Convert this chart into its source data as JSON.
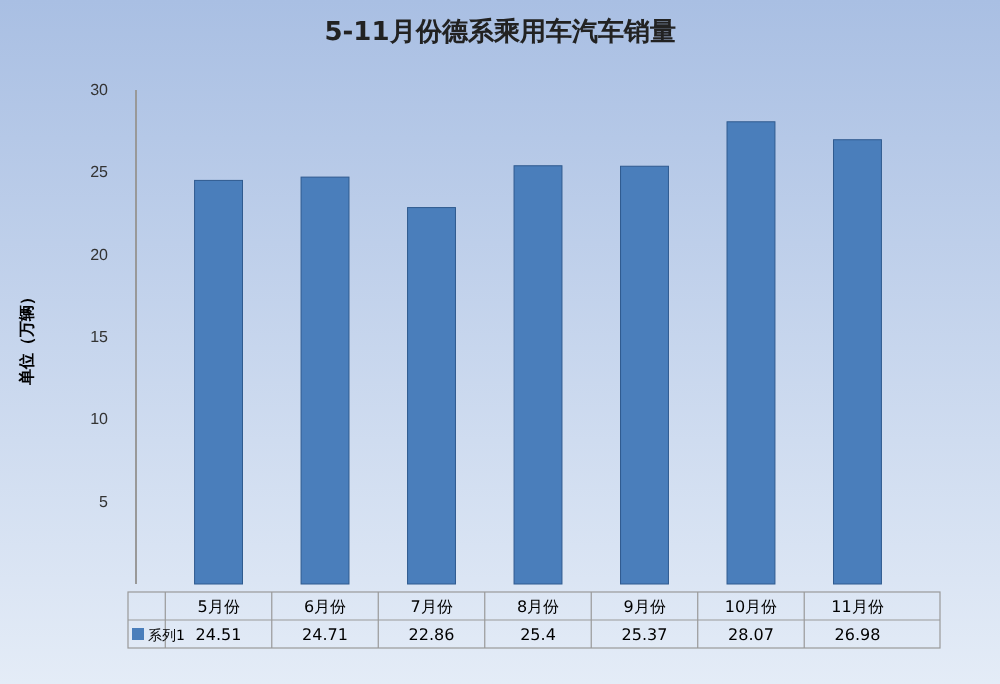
{
  "chart_data": {
    "type": "bar",
    "title": "5-11月份德系乘用车汽车销量",
    "ylabel": "单位（万辆）",
    "categories": [
      "5月份",
      "6月份",
      "7月份",
      "8月份",
      "9月份",
      "10月份",
      "11月份"
    ],
    "series": [
      {
        "name": "系列1",
        "color": "#4a7ebb",
        "values": [
          24.51,
          24.71,
          22.86,
          25.4,
          25.37,
          28.07,
          26.98
        ]
      }
    ],
    "ylim": [
      0,
      30
    ],
    "yticks": [
      5,
      10,
      15,
      20,
      25,
      30
    ],
    "data_labels": true,
    "legend": "bottom left"
  }
}
